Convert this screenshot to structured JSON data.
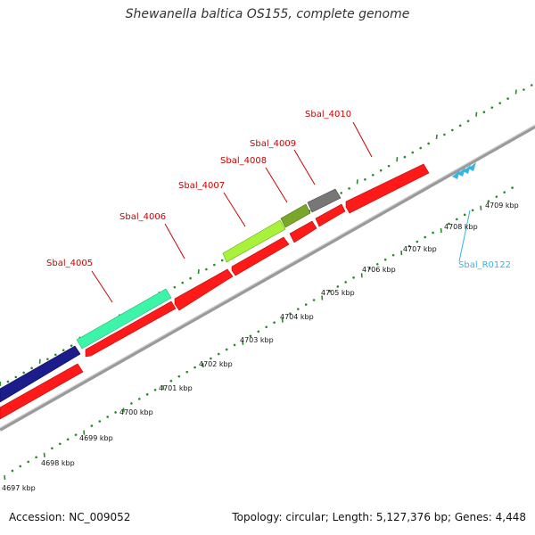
{
  "title": "Shewanella baltica OS155, complete genome",
  "footer": {
    "accession": "Accession: NC_009052",
    "topology": "Topology: circular; Length: 5,127,376 bp; Genes: 4,448"
  },
  "colors": {
    "forward_gene": "#ff1a1a",
    "navy_gene": "#1c1c8c",
    "aquamarine_gene": "#3df5a8",
    "yellowgreen_gene": "#a8f23c",
    "olive_gene": "#7aa62a",
    "gray_gene": "#777777",
    "backbone": "#a0a0a0",
    "tick_dots": "#2a8a2a",
    "gene_label": "#cc0000",
    "rna_label": "#33b5e5"
  },
  "scale_labels": [
    "4697 kbp",
    "4698 kbp",
    "4699 kbp",
    "4700 kbp",
    "4701 kbp",
    "4702 kbp",
    "4703 kbp",
    "4704 kbp",
    "4705 kbp",
    "4706 kbp",
    "4707 kbp",
    "4708 kbp",
    "4709 kbp"
  ],
  "gene_labels": [
    "Sbal_4005",
    "Sbal_4006",
    "Sbal_4007",
    "Sbal_4008",
    "Sbal_4009",
    "Sbal_4010"
  ],
  "rna_label": "Sbal_R0122"
}
